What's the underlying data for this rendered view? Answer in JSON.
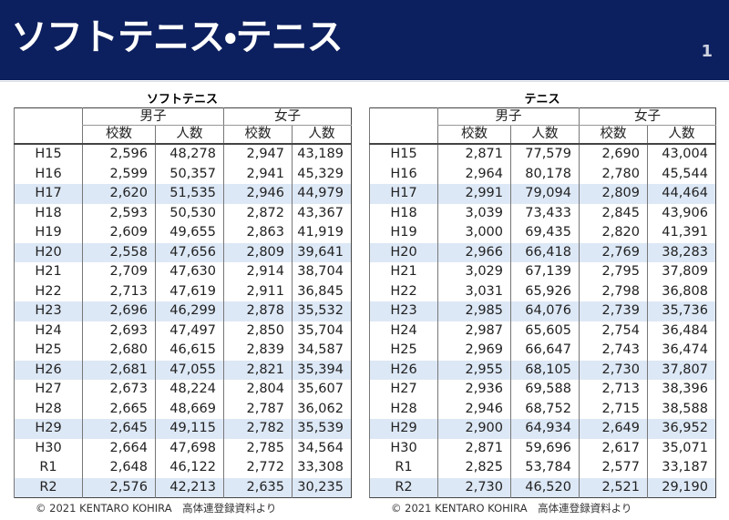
{
  "header": {
    "title": "ソフトテニス・テニス",
    "page": "1"
  },
  "tables": [
    {
      "caption": "ソフトテニス",
      "groups": [
        "男子",
        "女子"
      ],
      "columns": [
        "校数",
        "人数",
        "校数",
        "人数"
      ],
      "rows": [
        [
          "H15",
          "2,596",
          "48,278",
          "2,947",
          "43,189"
        ],
        [
          "H16",
          "2,599",
          "50,357",
          "2,941",
          "45,329"
        ],
        [
          "H17",
          "2,620",
          "51,535",
          "2,946",
          "44,979"
        ],
        [
          "H18",
          "2,593",
          "50,530",
          "2,872",
          "43,367"
        ],
        [
          "H19",
          "2,609",
          "49,655",
          "2,863",
          "41,919"
        ],
        [
          "H20",
          "2,558",
          "47,656",
          "2,809",
          "39,641"
        ],
        [
          "H21",
          "2,709",
          "47,630",
          "2,914",
          "38,704"
        ],
        [
          "H22",
          "2,713",
          "47,619",
          "2,911",
          "36,845"
        ],
        [
          "H23",
          "2,696",
          "46,299",
          "2,878",
          "35,532"
        ],
        [
          "H24",
          "2,693",
          "47,497",
          "2,850",
          "35,704"
        ],
        [
          "H25",
          "2,680",
          "46,615",
          "2,839",
          "34,587"
        ],
        [
          "H26",
          "2,681",
          "47,055",
          "2,821",
          "35,394"
        ],
        [
          "H27",
          "2,673",
          "48,224",
          "2,804",
          "35,607"
        ],
        [
          "H28",
          "2,665",
          "48,669",
          "2,787",
          "36,062"
        ],
        [
          "H29",
          "2,645",
          "49,115",
          "2,782",
          "35,539"
        ],
        [
          "H30",
          "2,664",
          "47,698",
          "2,785",
          "34,564"
        ],
        [
          "R1",
          "2,648",
          "46,122",
          "2,772",
          "33,308"
        ],
        [
          "R2",
          "2,576",
          "42,213",
          "2,635",
          "30,235"
        ]
      ],
      "footer": "© 2021 KENTARO KOHIRA　高体連登録資料より"
    },
    {
      "caption": "テニス",
      "groups": [
        "男子",
        "女子"
      ],
      "columns": [
        "校数",
        "人数",
        "校数",
        "人数"
      ],
      "rows": [
        [
          "H15",
          "2,871",
          "77,579",
          "2,690",
          "43,004"
        ],
        [
          "H16",
          "2,964",
          "80,178",
          "2,780",
          "45,544"
        ],
        [
          "H17",
          "2,991",
          "79,094",
          "2,809",
          "44,464"
        ],
        [
          "H18",
          "3,039",
          "73,433",
          "2,845",
          "43,906"
        ],
        [
          "H19",
          "3,000",
          "69,435",
          "2,820",
          "41,391"
        ],
        [
          "H20",
          "2,966",
          "66,418",
          "2,769",
          "38,283"
        ],
        [
          "H21",
          "3,029",
          "67,139",
          "2,795",
          "37,809"
        ],
        [
          "H22",
          "3,031",
          "65,926",
          "2,798",
          "36,808"
        ],
        [
          "H23",
          "2,985",
          "64,076",
          "2,739",
          "35,736"
        ],
        [
          "H24",
          "2,987",
          "65,605",
          "2,754",
          "36,484"
        ],
        [
          "H25",
          "2,969",
          "66,647",
          "2,743",
          "36,474"
        ],
        [
          "H26",
          "2,955",
          "68,105",
          "2,730",
          "37,807"
        ],
        [
          "H27",
          "2,936",
          "69,588",
          "2,713",
          "38,396"
        ],
        [
          "H28",
          "2,946",
          "68,752",
          "2,715",
          "38,588"
        ],
        [
          "H29",
          "2,900",
          "64,934",
          "2,649",
          "36,952"
        ],
        [
          "H30",
          "2,871",
          "59,696",
          "2,617",
          "35,071"
        ],
        [
          "R1",
          "2,825",
          "53,784",
          "2,577",
          "33,187"
        ],
        [
          "R2",
          "2,730",
          "46,520",
          "2,521",
          "29,190"
        ]
      ],
      "footer": "© 2021 KENTARO KOHIRA　高体連登録資料より"
    }
  ]
}
